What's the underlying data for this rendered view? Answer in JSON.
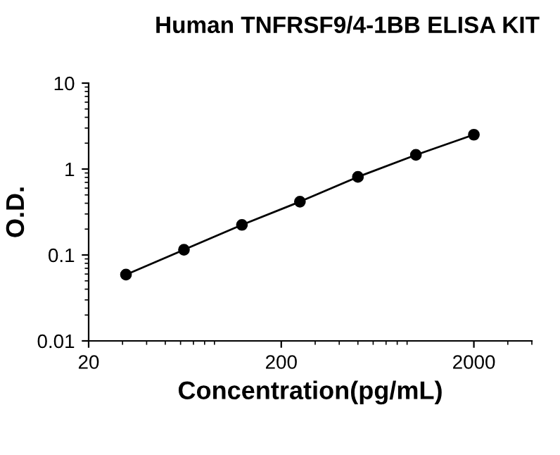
{
  "chart_data": {
    "type": "line",
    "title": "Human TNFRSF9/4-1BB ELISA KIT",
    "xlabel": "Concentration(pg/mL)",
    "ylabel": "O.D.",
    "log": "xy",
    "x": [
      31.25,
      62.5,
      125,
      250,
      500,
      1000,
      2000
    ],
    "series": [
      {
        "color": "#000000",
        "values": [
          0.059,
          0.115,
          0.224,
          0.417,
          0.81,
          1.46,
          2.51
        ]
      }
    ],
    "xlim": [
      20,
      4000
    ],
    "xticks": [
      20,
      200,
      2000
    ],
    "ylim": [
      0.01,
      10
    ],
    "yticks": [
      0.01,
      0.1,
      1,
      10
    ],
    "marker": "circle",
    "line_style": "solid",
    "grid": false,
    "legend": false
  }
}
